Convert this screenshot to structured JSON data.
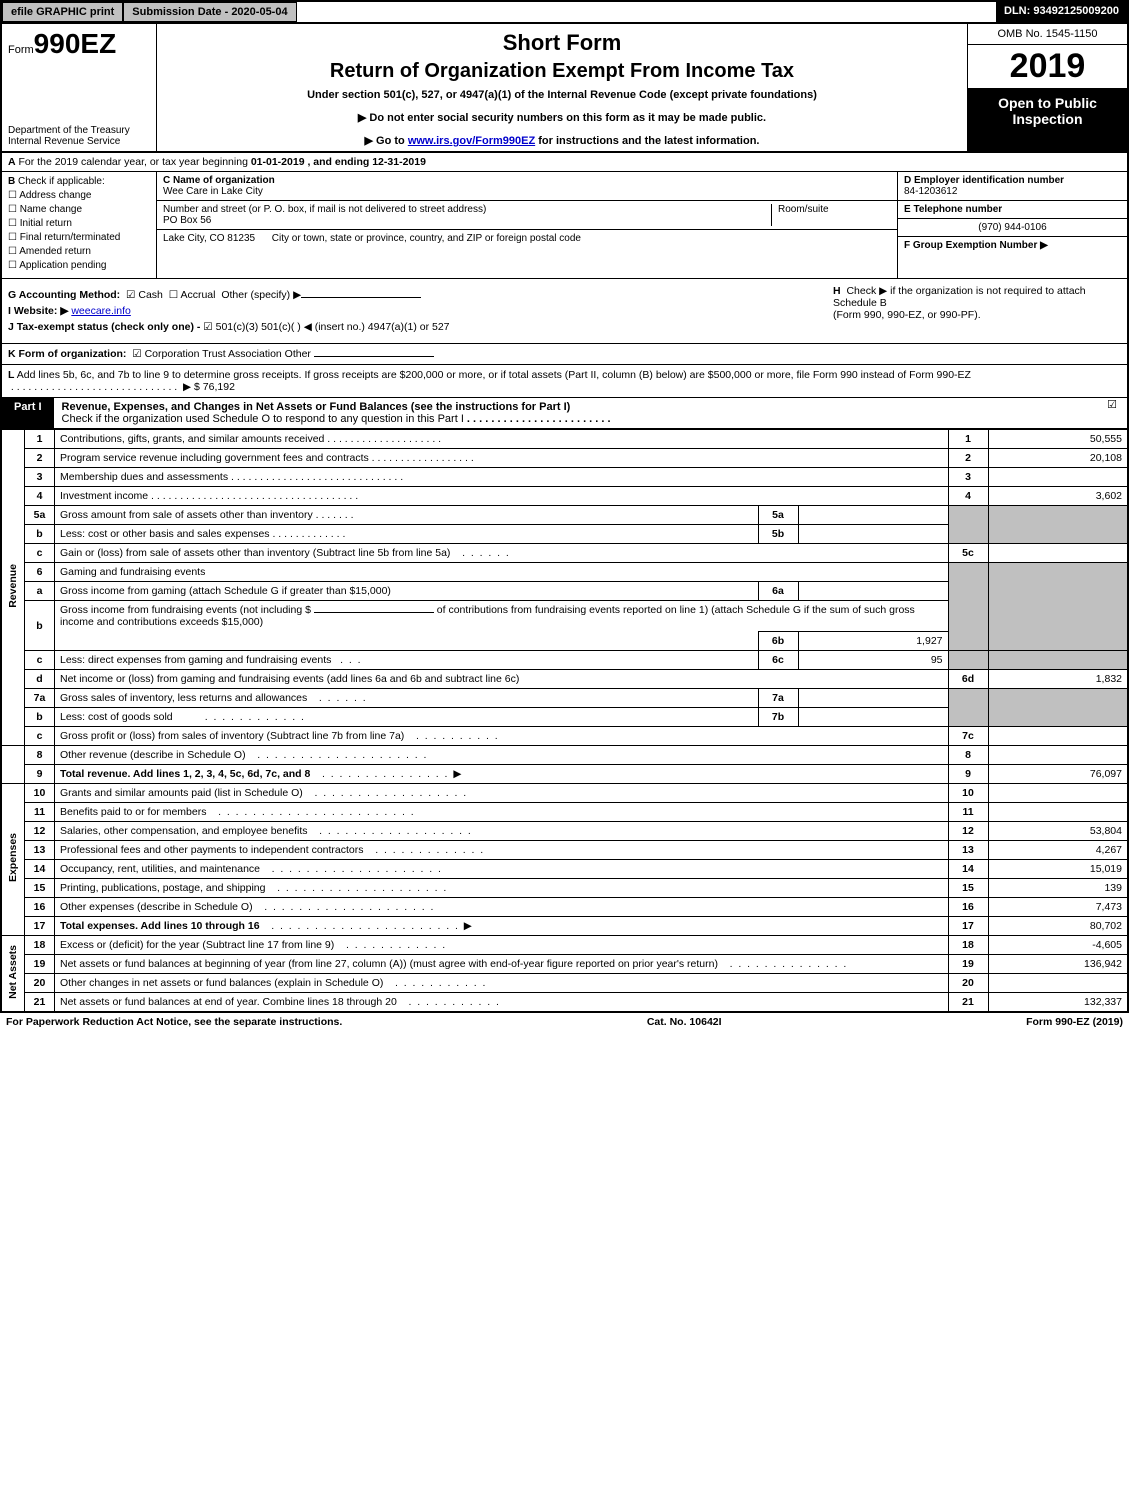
{
  "top_bar": {
    "efile_btn": "efile GRAPHIC print",
    "submission_label": "Submission Date - 2020-05-04",
    "dln": "DLN: 93492125009200"
  },
  "header": {
    "form_prefix": "Form",
    "form_number": "990EZ",
    "dept_line1": "Department of the Treasury",
    "dept_line2": "Internal Revenue Service",
    "short_form": "Short Form",
    "title": "Return of Organization Exempt From Income Tax",
    "subtitle": "Under section 501(c), 527, or 4947(a)(1) of the Internal Revenue Code (except private foundations)",
    "arrow1": "▶ Do not enter social security numbers on this form as it may be made public.",
    "arrow2_pre": "▶ Go to ",
    "arrow2_link": "www.irs.gov/Form990EZ",
    "arrow2_post": " for instructions and the latest information.",
    "omb": "OMB No. 1545-1150",
    "year": "2019",
    "open_public_l1": "Open to Public",
    "open_public_l2": "Inspection"
  },
  "row_a": {
    "label": "A",
    "text_pre": "For the 2019 calendar year, or tax year beginning ",
    "begin": "01-01-2019",
    "mid": " , and ending ",
    "end": "12-31-2019"
  },
  "block_b": {
    "b_label": "B",
    "check_if": "Check if applicable:",
    "checks": [
      "Address change",
      "Name change",
      "Initial return",
      "Final return/terminated",
      "Amended return",
      "Application pending"
    ],
    "c_label": "C",
    "c_name_lbl": "Name of organization",
    "c_name": "Wee Care in Lake City",
    "street_lbl": "Number and street (or P. O. box, if mail is not delivered to street address)",
    "street": "PO Box 56",
    "room_lbl": "Room/suite",
    "city_lbl": "City or town, state or province, country, and ZIP or foreign postal code",
    "city": "Lake City, CO  81235",
    "d_label": "D Employer identification number",
    "d_val": "84-1203612",
    "e_label": "E Telephone number",
    "e_val": "(970) 944-0106",
    "f_label": "F Group Exemption Number ▶"
  },
  "block_gh": {
    "g_label": "G Accounting Method:",
    "g_cash": "Cash",
    "g_accrual": "Accrual",
    "g_other": "Other (specify) ▶",
    "i_label": "I Website: ▶",
    "i_val": "weecare.info",
    "j_label": "J Tax-exempt status (check only one) -",
    "j_opts": "501(c)(3)   501(c)(  ) ◀ (insert no.)   4947(a)(1) or   527",
    "h_label": "H",
    "h_text1": "Check ▶    if the organization is not required to attach Schedule B",
    "h_text2": "(Form 990, 990-EZ, or 990-PF)."
  },
  "row_k": {
    "label": "K Form of organization:",
    "opts": "Corporation   Trust   Association   Other"
  },
  "row_l": {
    "label": "L",
    "text": "Add lines 5b, 6c, and 7b to line 9 to determine gross receipts. If gross receipts are $200,000 or more, or if total assets (Part II, column (B) below) are $500,000 or more, file Form 990 instead of Form 990-EZ",
    "amount": "▶ $ 76,192"
  },
  "part1": {
    "label": "Part I",
    "title": "Revenue, Expenses, and Changes in Net Assets or Fund Balances (see the instructions for Part I)",
    "check_line": "Check if the organization used Schedule O to respond to any question in this Part I"
  },
  "sections": {
    "revenue": "Revenue",
    "expenses": "Expenses",
    "netassets": "Net Assets"
  },
  "lines": {
    "1": {
      "n": "1",
      "desc": "Contributions, gifts, grants, and similar amounts received",
      "rn": "1",
      "rv": "50,555"
    },
    "2": {
      "n": "2",
      "desc": "Program service revenue including government fees and contracts",
      "rn": "2",
      "rv": "20,108"
    },
    "3": {
      "n": "3",
      "desc": "Membership dues and assessments",
      "rn": "3",
      "rv": ""
    },
    "4": {
      "n": "4",
      "desc": "Investment income",
      "rn": "4",
      "rv": "3,602"
    },
    "5a": {
      "n": "5a",
      "desc": "Gross amount from sale of assets other than inventory",
      "mn": "5a",
      "mv": ""
    },
    "5b": {
      "n": "b",
      "desc": "Less: cost or other basis and sales expenses",
      "mn": "5b",
      "mv": ""
    },
    "5c": {
      "n": "c",
      "desc": "Gain or (loss) from sale of assets other than inventory (Subtract line 5b from line 5a)",
      "rn": "5c",
      "rv": ""
    },
    "6": {
      "n": "6",
      "desc": "Gaming and fundraising events"
    },
    "6a": {
      "n": "a",
      "desc": "Gross income from gaming (attach Schedule G if greater than $15,000)",
      "mn": "6a",
      "mv": ""
    },
    "6b": {
      "n": "b",
      "desc_pre": "Gross income from fundraising events (not including $ ",
      "desc_post": " of contributions from fundraising events reported on line 1) (attach Schedule G if the sum of such gross income and contributions exceeds $15,000)",
      "mn": "6b",
      "mv": "1,927"
    },
    "6c": {
      "n": "c",
      "desc": "Less: direct expenses from gaming and fundraising events",
      "mn": "6c",
      "mv": "95"
    },
    "6d": {
      "n": "d",
      "desc": "Net income or (loss) from gaming and fundraising events (add lines 6a and 6b and subtract line 6c)",
      "rn": "6d",
      "rv": "1,832"
    },
    "7a": {
      "n": "7a",
      "desc": "Gross sales of inventory, less returns and allowances",
      "mn": "7a",
      "mv": ""
    },
    "7b": {
      "n": "b",
      "desc": "Less: cost of goods sold",
      "mn": "7b",
      "mv": ""
    },
    "7c": {
      "n": "c",
      "desc": "Gross profit or (loss) from sales of inventory (Subtract line 7b from line 7a)",
      "rn": "7c",
      "rv": ""
    },
    "8": {
      "n": "8",
      "desc": "Other revenue (describe in Schedule O)",
      "rn": "8",
      "rv": ""
    },
    "9": {
      "n": "9",
      "desc": "Total revenue. Add lines 1, 2, 3, 4, 5c, 6d, 7c, and 8",
      "rn": "9",
      "rv": "76,097",
      "arrow": "▶"
    },
    "10": {
      "n": "10",
      "desc": "Grants and similar amounts paid (list in Schedule O)",
      "rn": "10",
      "rv": ""
    },
    "11": {
      "n": "11",
      "desc": "Benefits paid to or for members",
      "rn": "11",
      "rv": ""
    },
    "12": {
      "n": "12",
      "desc": "Salaries, other compensation, and employee benefits",
      "rn": "12",
      "rv": "53,804"
    },
    "13": {
      "n": "13",
      "desc": "Professional fees and other payments to independent contractors",
      "rn": "13",
      "rv": "4,267"
    },
    "14": {
      "n": "14",
      "desc": "Occupancy, rent, utilities, and maintenance",
      "rn": "14",
      "rv": "15,019"
    },
    "15": {
      "n": "15",
      "desc": "Printing, publications, postage, and shipping",
      "rn": "15",
      "rv": "139"
    },
    "16": {
      "n": "16",
      "desc": "Other expenses (describe in Schedule O)",
      "rn": "16",
      "rv": "7,473"
    },
    "17": {
      "n": "17",
      "desc": "Total expenses. Add lines 10 through 16",
      "rn": "17",
      "rv": "80,702",
      "arrow": "▶"
    },
    "18": {
      "n": "18",
      "desc": "Excess or (deficit) for the year (Subtract line 17 from line 9)",
      "rn": "18",
      "rv": "-4,605"
    },
    "19": {
      "n": "19",
      "desc": "Net assets or fund balances at beginning of year (from line 27, column (A)) (must agree with end-of-year figure reported on prior year's return)",
      "rn": "19",
      "rv": "136,942"
    },
    "20": {
      "n": "20",
      "desc": "Other changes in net assets or fund balances (explain in Schedule O)",
      "rn": "20",
      "rv": ""
    },
    "21": {
      "n": "21",
      "desc": "Net assets or fund balances at end of year. Combine lines 18 through 20",
      "rn": "21",
      "rv": "132,337"
    }
  },
  "footer": {
    "left": "For Paperwork Reduction Act Notice, see the separate instructions.",
    "center": "Cat. No. 10642I",
    "right": "Form 990-EZ (2019)"
  },
  "colors": {
    "black": "#000000",
    "white": "#ffffff",
    "grey": "#c0c0c0",
    "link": "#0000cc"
  }
}
